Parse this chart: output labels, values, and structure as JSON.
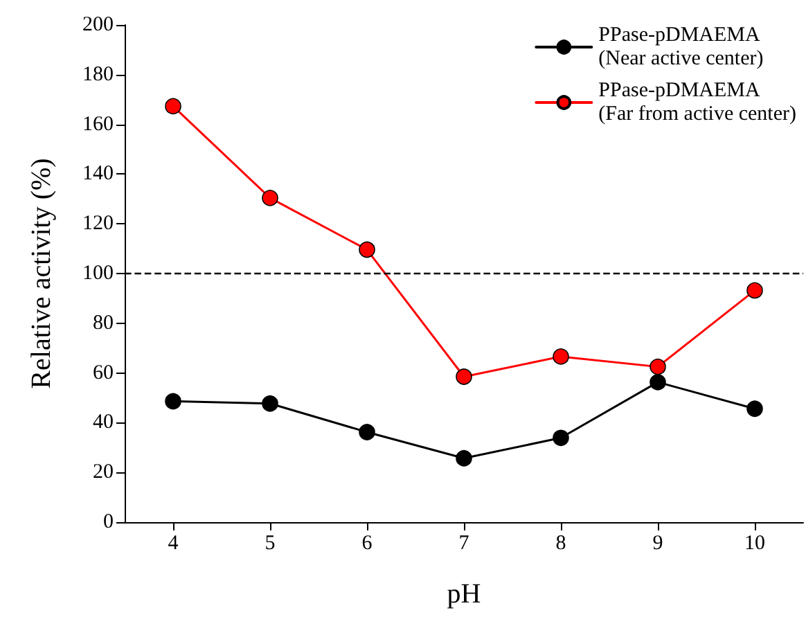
{
  "chart_data": {
    "type": "line",
    "xlabel": "pH",
    "ylabel": "Relative activity (%)",
    "x": [
      4,
      5,
      6,
      7,
      8,
      9,
      10
    ],
    "series": [
      {
        "name": "PPase-pDMAEMA\n(Near active center)",
        "color": "#000000",
        "values": [
          48.6,
          47.7,
          36.2,
          25.7,
          33.9,
          56.3,
          45.6
        ]
      },
      {
        "name": "PPase-pDMAEMA\n(Far from active center)",
        "color": "#ff0000",
        "values": [
          167.3,
          130.4,
          109.6,
          58.5,
          66.6,
          62.5,
          93.2
        ]
      }
    ],
    "xlim": [
      3.5,
      10.5
    ],
    "xticks": [
      4,
      5,
      6,
      7,
      8,
      9,
      10
    ],
    "ylim": [
      0,
      200
    ],
    "yticks": [
      0,
      20,
      40,
      60,
      80,
      100,
      120,
      140,
      160,
      180,
      200
    ],
    "ref_lines": [
      {
        "axis": "y",
        "value": 100,
        "line_style": "dashed",
        "color": "#000000"
      }
    ],
    "legend": "top right",
    "marker": "circle",
    "line_style": "solid",
    "grid": false
  }
}
